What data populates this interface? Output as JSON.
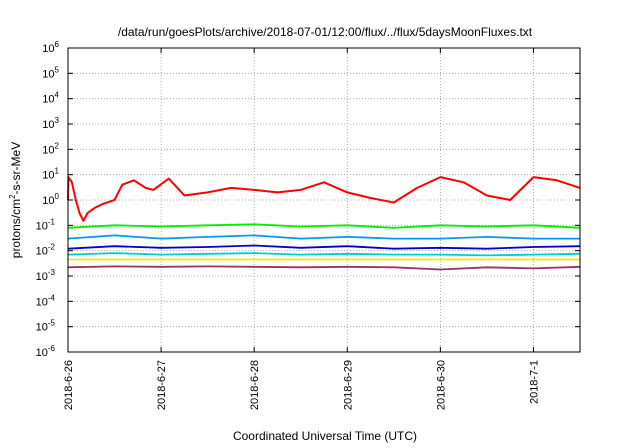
{
  "chart_data": {
    "type": "line",
    "title": "/data/run/goesPlots/archive/2018-07-01/12:00/flux/../flux/5daysMoonFluxes.txt",
    "xlabel": "Coordinated Universal Time (UTC)",
    "ylabel": "protons/cm²-s-sr-MeV",
    "x_range": [
      "2018-06-26 00:00",
      "2018-07-01 12:00"
    ],
    "x_ticks": [
      "2018-6-26",
      "2018-6-27",
      "2018-6-28",
      "2018-6-29",
      "2018-6-30",
      "2018-7-1"
    ],
    "y_scale": "log",
    "ylim": [
      1e-06,
      1000000.0
    ],
    "y_ticks": [
      {
        "base": "10",
        "exp": "-6"
      },
      {
        "base": "10",
        "exp": "-5"
      },
      {
        "base": "10",
        "exp": "-4"
      },
      {
        "base": "10",
        "exp": "-3"
      },
      {
        "base": "10",
        "exp": "-2"
      },
      {
        "base": "10",
        "exp": "-1"
      },
      {
        "base": "10",
        "exp": "0"
      },
      {
        "base": "10",
        "exp": "1"
      },
      {
        "base": "10",
        "exp": "2"
      },
      {
        "base": "10",
        "exp": "3"
      },
      {
        "base": "10",
        "exp": "4"
      },
      {
        "base": "10",
        "exp": "5"
      },
      {
        "base": "10",
        "exp": "6"
      }
    ],
    "grid": true,
    "series": [
      {
        "color": "#ff0000",
        "x": [
          "2018-06-26 00:00",
          "2018-06-26 00:06",
          "2018-06-26 01:00",
          "2018-06-26 02:00",
          "2018-06-26 03:00",
          "2018-06-26 04:00",
          "2018-06-26 05:00",
          "2018-06-26 07:00",
          "2018-06-26 09:00",
          "2018-06-26 12:00",
          "2018-06-26 14:00",
          "2018-06-26 17:00",
          "2018-06-26 20:00",
          "2018-06-26 22:00",
          "2018-06-27 02:00",
          "2018-06-27 06:00",
          "2018-06-27 12:00",
          "2018-06-27 18:00",
          "2018-06-28 00:00",
          "2018-06-28 06:00",
          "2018-06-28 12:00",
          "2018-06-28 18:00",
          "2018-06-29 00:00",
          "2018-06-29 06:00",
          "2018-06-29 12:00",
          "2018-06-29 18:00",
          "2018-06-30 00:00",
          "2018-06-30 06:00",
          "2018-06-30 12:00",
          "2018-06-30 18:00",
          "2018-07-01 00:00",
          "2018-07-01 06:00",
          "2018-07-01 12:00"
        ],
        "values": [
          1.0,
          8.0,
          5.0,
          1.0,
          0.3,
          0.15,
          0.3,
          0.5,
          0.7,
          1.0,
          4.0,
          6.0,
          3.0,
          2.5,
          7.0,
          1.5,
          2.0,
          3.0,
          2.5,
          2.0,
          2.5,
          5.0,
          2.0,
          1.2,
          0.8,
          3.0,
          8.0,
          5.0,
          1.5,
          1.0,
          8.0,
          6.0,
          3.0
        ]
      },
      {
        "color": "#00ee00",
        "x": [
          "2018-06-26 00:00",
          "2018-06-26 12:00",
          "2018-06-27 00:00",
          "2018-06-27 12:00",
          "2018-06-28 00:00",
          "2018-06-28 12:00",
          "2018-06-29 00:00",
          "2018-06-29 12:00",
          "2018-06-30 00:00",
          "2018-06-30 12:00",
          "2018-07-01 00:00",
          "2018-07-01 12:00"
        ],
        "values": [
          0.08,
          0.1,
          0.09,
          0.1,
          0.11,
          0.09,
          0.1,
          0.08,
          0.1,
          0.09,
          0.1,
          0.08
        ]
      },
      {
        "color": "#0099ff",
        "x": [
          "2018-06-26 00:00",
          "2018-06-26 12:00",
          "2018-06-27 00:00",
          "2018-06-27 12:00",
          "2018-06-28 00:00",
          "2018-06-28 12:00",
          "2018-06-29 00:00",
          "2018-06-29 12:00",
          "2018-06-30 00:00",
          "2018-06-30 12:00",
          "2018-07-01 00:00",
          "2018-07-01 12:00"
        ],
        "values": [
          0.03,
          0.04,
          0.03,
          0.035,
          0.04,
          0.03,
          0.035,
          0.03,
          0.03,
          0.035,
          0.03,
          0.03
        ]
      },
      {
        "color": "#0000cc",
        "x": [
          "2018-06-26 00:00",
          "2018-06-26 12:00",
          "2018-06-27 00:00",
          "2018-06-27 12:00",
          "2018-06-28 00:00",
          "2018-06-28 12:00",
          "2018-06-29 00:00",
          "2018-06-29 12:00",
          "2018-06-30 00:00",
          "2018-06-30 12:00",
          "2018-07-01 00:00",
          "2018-07-01 12:00"
        ],
        "values": [
          0.012,
          0.015,
          0.013,
          0.014,
          0.016,
          0.013,
          0.015,
          0.012,
          0.013,
          0.012,
          0.014,
          0.015
        ]
      },
      {
        "color": "#00cccc",
        "x": [
          "2018-06-26 00:00",
          "2018-06-26 12:00",
          "2018-06-27 00:00",
          "2018-06-27 12:00",
          "2018-06-28 00:00",
          "2018-06-28 12:00",
          "2018-06-29 00:00",
          "2018-06-29 12:00",
          "2018-06-30 00:00",
          "2018-06-30 12:00",
          "2018-07-01 00:00",
          "2018-07-01 12:00"
        ],
        "values": [
          0.007,
          0.008,
          0.007,
          0.0075,
          0.008,
          0.007,
          0.0075,
          0.007,
          0.007,
          0.0065,
          0.007,
          0.0075
        ]
      },
      {
        "color": "#eeee00",
        "x": [
          "2018-06-26 00:00",
          "2018-06-26 12:00",
          "2018-06-27 00:00",
          "2018-06-27 12:00",
          "2018-06-28 00:00",
          "2018-06-28 12:00",
          "2018-06-29 00:00",
          "2018-06-29 12:00",
          "2018-06-30 00:00",
          "2018-06-30 12:00",
          "2018-07-01 00:00",
          "2018-07-01 12:00"
        ],
        "values": [
          0.0045,
          0.0045,
          0.0045,
          0.0045,
          0.0045,
          0.0045,
          0.0045,
          0.0045,
          0.0045,
          0.0045,
          0.0045,
          0.0045
        ]
      },
      {
        "color": "#993366",
        "x": [
          "2018-06-26 00:00",
          "2018-06-26 12:00",
          "2018-06-27 00:00",
          "2018-06-27 12:00",
          "2018-06-28 00:00",
          "2018-06-28 12:00",
          "2018-06-29 00:00",
          "2018-06-29 12:00",
          "2018-06-30 00:00",
          "2018-06-30 12:00",
          "2018-07-01 00:00",
          "2018-07-01 12:00"
        ],
        "values": [
          0.0022,
          0.0024,
          0.0023,
          0.0024,
          0.0023,
          0.0022,
          0.0023,
          0.0022,
          0.0018,
          0.0022,
          0.002,
          0.0023
        ]
      }
    ]
  }
}
